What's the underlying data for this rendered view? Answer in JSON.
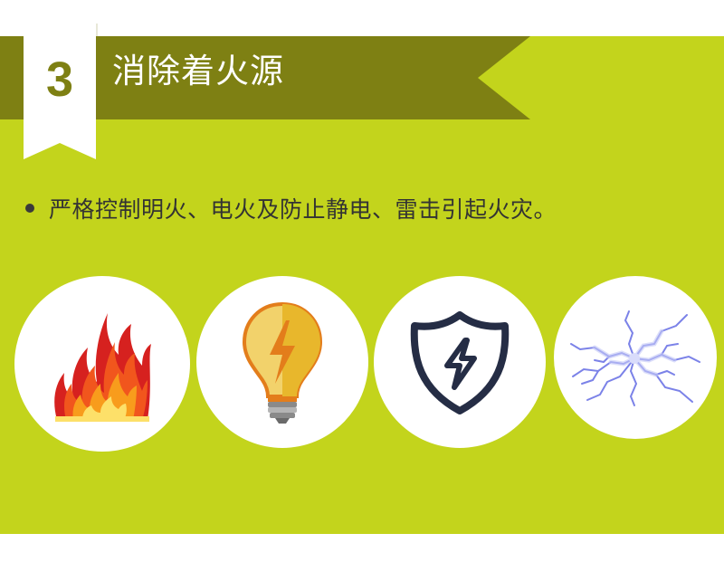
{
  "header": {
    "step_number": "3",
    "title": "消除着火源"
  },
  "content": {
    "bullet_text": "严格控制明火、电火及防止静电、雷击引起火灾。"
  },
  "icons": [
    {
      "name": "fire-icon"
    },
    {
      "name": "lightbulb-icon"
    },
    {
      "name": "shield-lightning-icon"
    },
    {
      "name": "electric-spark-icon"
    }
  ],
  "colors": {
    "background": "#c3d41c",
    "banner": "#7e8013",
    "ribbon": "#ffffff",
    "text": "#333333"
  }
}
